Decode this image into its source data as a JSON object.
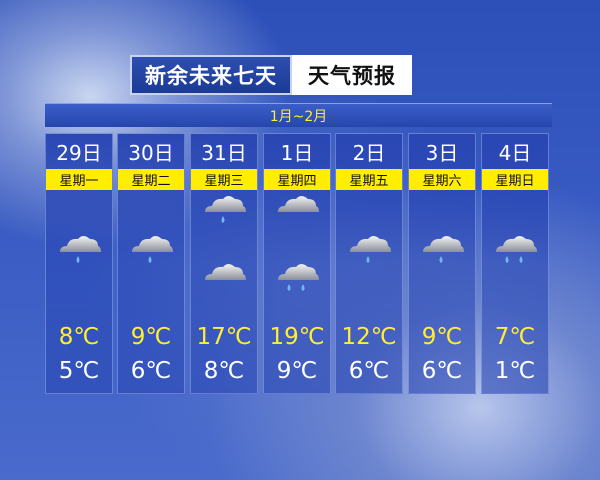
{
  "header": {
    "title": "新余未来七天",
    "subtitle": "天气预报",
    "months": "1月~2月"
  },
  "colors": {
    "accent_yellow": "#ffee00",
    "panel_blue": "#2a47b4"
  },
  "days": [
    {
      "date": "29日",
      "weekday": "星期一",
      "high": "8℃",
      "low": "5℃",
      "icons": [
        "light-rain-icon"
      ]
    },
    {
      "date": "30日",
      "weekday": "星期二",
      "high": "9℃",
      "low": "6℃",
      "icons": [
        "light-rain-icon"
      ]
    },
    {
      "date": "31日",
      "weekday": "星期三",
      "high": "17℃",
      "low": "8℃",
      "icons": [
        "light-rain-icon",
        "cloudy-icon"
      ]
    },
    {
      "date": "1日",
      "weekday": "星期四",
      "high": "19℃",
      "low": "9℃",
      "icons": [
        "cloudy-icon",
        "moderate-rain-icon"
      ]
    },
    {
      "date": "2日",
      "weekday": "星期五",
      "high": "12℃",
      "low": "6℃",
      "icons": [
        "light-rain-icon"
      ]
    },
    {
      "date": "3日",
      "weekday": "星期六",
      "high": "9℃",
      "low": "6℃",
      "icons": [
        "light-rain-icon"
      ]
    },
    {
      "date": "4日",
      "weekday": "星期日",
      "high": "7℃",
      "low": "1℃",
      "icons": [
        "moderate-rain-icon"
      ]
    }
  ]
}
